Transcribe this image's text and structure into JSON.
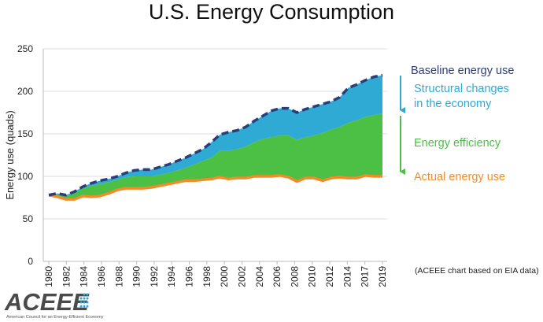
{
  "chart_data": {
    "type": "area",
    "title": "U.S. Energy Consumption",
    "ylabel": "Energy use (quads)",
    "xlabel": "",
    "ylim": [
      0,
      250
    ],
    "yticks": [
      0,
      50,
      100,
      150,
      200,
      250
    ],
    "x_tick_labels": [
      "1980",
      "1982",
      "1984",
      "1986",
      "1988",
      "1990",
      "1992",
      "1994",
      "1996",
      "1998",
      "2000",
      "2002",
      "2004",
      "2006",
      "2008",
      "2010",
      "2012",
      "2014",
      "2017",
      "2019"
    ],
    "x": [
      1980,
      1981,
      1982,
      1983,
      1984,
      1985,
      1986,
      1987,
      1988,
      1989,
      1990,
      1991,
      1992,
      1993,
      1994,
      1995,
      1996,
      1997,
      1998,
      1999,
      2000,
      2001,
      2002,
      2003,
      2004,
      2005,
      2006,
      2007,
      2008,
      2009,
      2010,
      2011,
      2012,
      2013,
      2014,
      2015,
      2016,
      2017,
      2018,
      2019
    ],
    "series": [
      {
        "name": "Baseline energy use",
        "color": "#2a3f7a",
        "style": "dashed",
        "values": [
          78,
          80,
          78,
          82,
          88,
          92,
          95,
          97,
          100,
          104,
          107,
          108,
          108,
          111,
          114,
          118,
          122,
          127,
          132,
          140,
          149,
          152,
          154,
          158,
          165,
          171,
          177,
          180,
          180,
          175,
          179,
          182,
          185,
          188,
          193,
          204,
          208,
          213,
          217,
          219
        ]
      },
      {
        "name": "Structural changes in the economy",
        "color": "#2eaad5",
        "style": "area",
        "values": [
          78,
          79,
          77,
          80,
          86,
          89,
          91,
          93,
          96,
          99,
          100,
          100,
          100,
          102,
          104,
          107,
          110,
          114,
          118,
          122,
          130,
          130,
          132,
          135,
          140,
          144,
          146,
          148,
          148,
          143,
          146,
          148,
          151,
          155,
          158,
          163,
          166,
          170,
          172,
          174
        ]
      },
      {
        "name": "Energy efficiency",
        "color": "#4cbf45",
        "style": "area",
        "values": [
          78,
          76,
          73,
          73,
          77,
          76,
          77,
          80,
          84,
          86,
          86,
          86,
          87,
          89,
          91,
          93,
          95,
          95,
          96,
          97,
          99,
          97,
          98,
          98,
          100,
          100,
          100,
          101,
          99,
          94,
          98,
          98,
          95,
          98,
          99,
          98,
          98,
          101,
          100,
          100
        ]
      },
      {
        "name": "Actual energy use",
        "color": "#f28c28",
        "style": "line",
        "values": [
          78,
          76,
          73,
          73,
          77,
          76,
          77,
          80,
          84,
          86,
          86,
          86,
          87,
          89,
          91,
          93,
          95,
          95,
          96,
          97,
          99,
          97,
          98,
          98,
          100,
          100,
          100,
          101,
          99,
          94,
          98,
          98,
          95,
          98,
          99,
          98,
          98,
          101,
          100,
          100
        ]
      }
    ],
    "legend": [
      {
        "label_lines": [
          "Baseline energy use"
        ],
        "color": "#2a3f7a"
      },
      {
        "label_lines": [
          "Structural changes",
          "in the economy"
        ],
        "color": "#2eaad5"
      },
      {
        "label_lines": [
          "Energy efficiency"
        ],
        "color": "#4cbf45"
      },
      {
        "label_lines": [
          "Actual energy use"
        ],
        "color": "#f28c28"
      }
    ],
    "arrow_colors": {
      "structural": "#2eaad5",
      "efficiency": "#4cbf45"
    },
    "source_note": "(ACEEE chart based on EIA data)"
  },
  "logo": {
    "name": "ACEEE",
    "tagline": "American Council for an Energy-Efficient Economy",
    "dot_color": "#2eaad5"
  }
}
